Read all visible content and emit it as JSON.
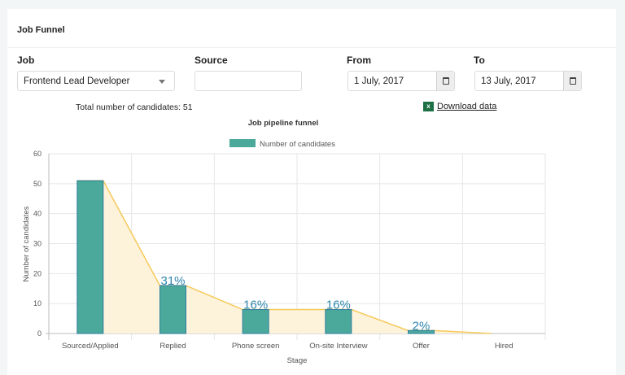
{
  "card": {
    "title": "Job Funnel"
  },
  "filters": {
    "job": {
      "label": "Job",
      "value": "Frontend Lead Developer"
    },
    "source": {
      "label": "Source",
      "value": ""
    },
    "from": {
      "label": "From",
      "value": "1 July, 2017"
    },
    "to": {
      "label": "To",
      "value": "13 July, 2017"
    }
  },
  "summary": {
    "total_text": "Total number of candidates: 51",
    "download_label": "Download data",
    "download_icon": "excel-icon"
  },
  "colors": {
    "bar": "#4aa99b",
    "bar_border": "#2f7ea0",
    "funnel_fill": "#fdf3db",
    "funnel_line": "#f6c95a",
    "percent_label": "#2e86ad"
  },
  "chart_data": {
    "type": "bar",
    "title": "Job pipeline funnel",
    "legend": {
      "entries": [
        "Number of candidates"
      ],
      "placement": "top"
    },
    "xlabel": "Stage",
    "ylabel": "Number of candidates",
    "ylim": [
      0,
      60
    ],
    "yticks": [
      0,
      10,
      20,
      30,
      40,
      50,
      60
    ],
    "grid": true,
    "categories": [
      "Sourced/Applied",
      "Replied",
      "Phone screen",
      "On-site Interview",
      "Offer",
      "Hired"
    ],
    "series": [
      {
        "name": "Number of candidates",
        "values": [
          51,
          16,
          8,
          8,
          1,
          0
        ]
      }
    ],
    "data_labels": [
      "",
      "31%",
      "16%",
      "16%",
      "2%",
      ""
    ]
  }
}
